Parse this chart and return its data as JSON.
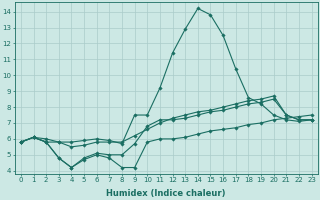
{
  "xlabel": "Humidex (Indice chaleur)",
  "background_color": "#cce8e4",
  "grid_color": "#aaccca",
  "line_color": "#1a6e62",
  "xlim": [
    -0.5,
    23.5
  ],
  "ylim": [
    3.8,
    14.6
  ],
  "yticks": [
    4,
    5,
    6,
    7,
    8,
    9,
    10,
    11,
    12,
    13,
    14
  ],
  "xticks": [
    0,
    1,
    2,
    3,
    4,
    5,
    6,
    7,
    8,
    9,
    10,
    11,
    12,
    13,
    14,
    15,
    16,
    17,
    18,
    19,
    20,
    21,
    22,
    23
  ],
  "line1_x": [
    0,
    1,
    2,
    3,
    4,
    5,
    6,
    7,
    8,
    9,
    10,
    11,
    12,
    13,
    14,
    15,
    16,
    17,
    18,
    19,
    20,
    21,
    22,
    23
  ],
  "line1_y": [
    5.8,
    6.1,
    6.0,
    5.8,
    5.8,
    5.9,
    6.0,
    5.9,
    5.7,
    7.5,
    7.5,
    9.2,
    11.4,
    12.9,
    14.2,
    13.8,
    12.5,
    10.4,
    8.6,
    8.2,
    7.5,
    7.2,
    7.1,
    7.2
  ],
  "line2_x": [
    0,
    1,
    2,
    3,
    4,
    5,
    6,
    7,
    8,
    9,
    10,
    11,
    12,
    13,
    14,
    15,
    16,
    17,
    18,
    19,
    20,
    21,
    22,
    23
  ],
  "line2_y": [
    5.8,
    6.1,
    5.8,
    4.8,
    4.2,
    4.7,
    5.0,
    4.8,
    4.2,
    4.2,
    5.8,
    6.0,
    6.0,
    6.1,
    6.3,
    6.5,
    6.6,
    6.7,
    6.9,
    7.0,
    7.2,
    7.3,
    7.4,
    7.5
  ],
  "line3_x": [
    0,
    1,
    2,
    3,
    4,
    5,
    6,
    7,
    8,
    9,
    10,
    11,
    12,
    13,
    14,
    15,
    16,
    17,
    18,
    19,
    20,
    21,
    22,
    23
  ],
  "line3_y": [
    5.8,
    6.1,
    5.8,
    4.8,
    4.2,
    4.8,
    5.1,
    5.0,
    5.0,
    5.7,
    6.8,
    7.2,
    7.2,
    7.3,
    7.5,
    7.7,
    7.8,
    8.0,
    8.2,
    8.3,
    8.5,
    7.5,
    7.2,
    7.2
  ],
  "line4_x": [
    0,
    1,
    2,
    3,
    4,
    5,
    6,
    7,
    8,
    9,
    10,
    11,
    12,
    13,
    14,
    15,
    16,
    17,
    18,
    19,
    20,
    21,
    22,
    23
  ],
  "line4_y": [
    5.8,
    6.1,
    5.8,
    5.8,
    5.5,
    5.6,
    5.8,
    5.8,
    5.8,
    6.2,
    6.6,
    7.0,
    7.3,
    7.5,
    7.7,
    7.8,
    8.0,
    8.2,
    8.4,
    8.5,
    8.7,
    7.5,
    7.2,
    7.2
  ],
  "tick_fontsize": 5.0,
  "xlabel_fontsize": 6.0
}
